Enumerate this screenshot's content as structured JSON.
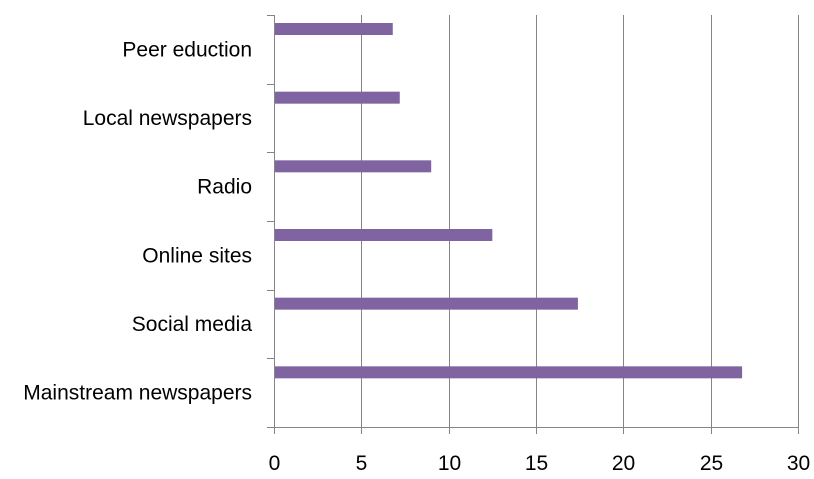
{
  "chart_data": {
    "type": "bar",
    "orientation": "horizontal",
    "title": "",
    "xlabel": "",
    "ylabel": "",
    "categories": [
      "Peer eduction",
      "Local newspapers",
      "Radio",
      "Online sites",
      "Social media",
      "Mainstream newspapers"
    ],
    "values": [
      6.8,
      7.2,
      9.0,
      12.5,
      17.4,
      26.8
    ],
    "xlim": [
      0,
      30
    ],
    "xticks": [
      0,
      5,
      10,
      15,
      20,
      25,
      30
    ],
    "grid": true,
    "legend": "none",
    "colors": {
      "bar": "#8064a2",
      "grid": "#858585"
    }
  }
}
